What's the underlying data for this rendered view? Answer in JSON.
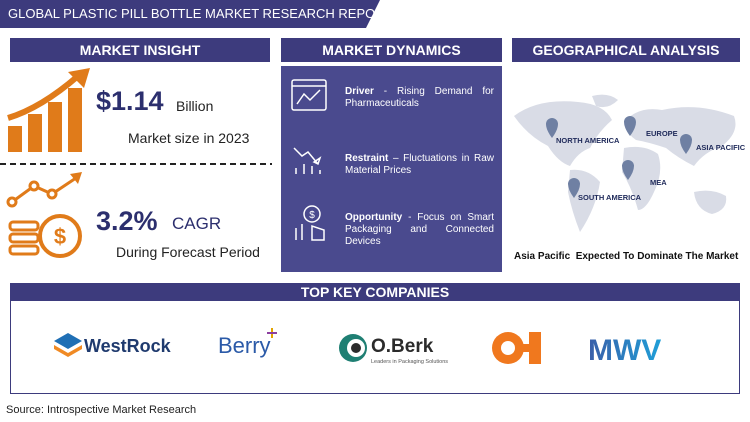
{
  "header": {
    "title": "GLOBAL PLASTIC PILL BOTTLE MARKET RESEARCH REPORT"
  },
  "market_insight": {
    "heading": "MARKET INSIGHT",
    "market_size": {
      "value": "$1.14",
      "unit": "Billion",
      "caption": "Market size in 2023"
    },
    "cagr": {
      "value": "3.2%",
      "unit": "CAGR",
      "caption": "During Forecast Period"
    }
  },
  "market_dynamics": {
    "heading": "MARKET DYNAMICS",
    "items": [
      {
        "label": "Driver",
        "text": "- Rising Demand for Pharmaceuticals"
      },
      {
        "label": "Restraint",
        "text": "– Fluctuations in Raw Material Prices"
      },
      {
        "label": "Opportunity",
        "text": "- Focus on Smart Packaging and Connected Devices"
      }
    ]
  },
  "geographical_analysis": {
    "heading": "GEOGRAPHICAL ANALYSIS",
    "regions": [
      "NORTH AMERICA",
      "EUROPE",
      "ASIA PACIFIC",
      "MEA",
      "SOUTH AMERICA"
    ],
    "caption": "Asia Pacific  Expected To Dominate The Market"
  },
  "top_key_companies": {
    "heading": "TOP KEY COMPANIES",
    "companies": [
      "WestRock",
      "Berry",
      "O.Berk",
      "MWV"
    ],
    "tagline": "Leaders in Packaging Solutions"
  },
  "source": "Source: Introspective Market Research"
}
